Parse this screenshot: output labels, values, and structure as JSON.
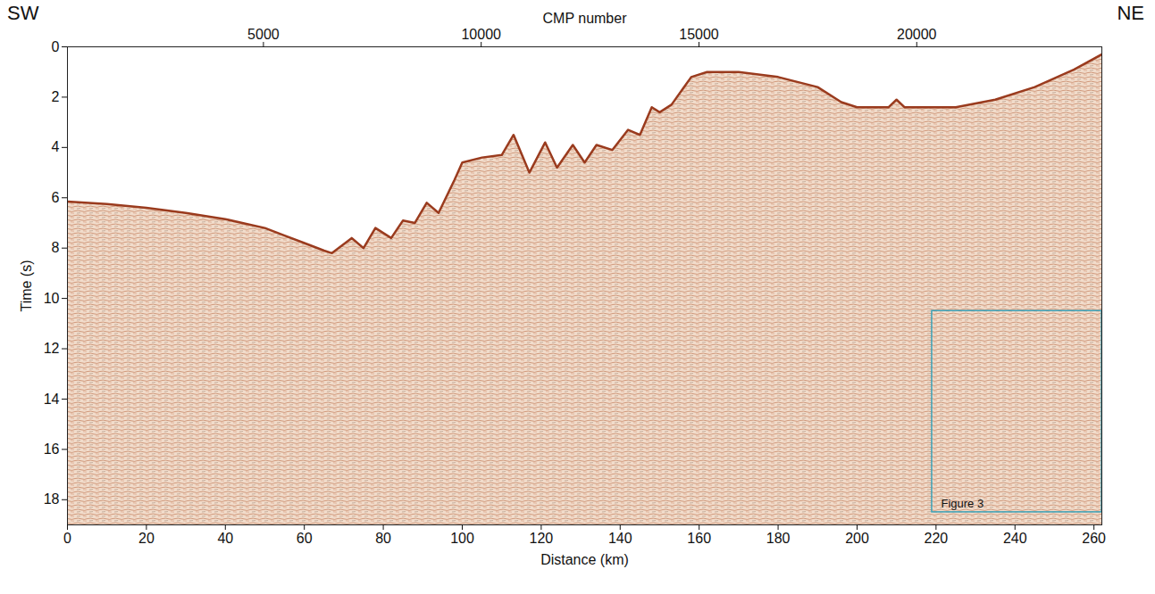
{
  "chart_data": {
    "type": "area",
    "x_label": "Distance (km)",
    "y_label": "Time (s)",
    "x2_label": "CMP number",
    "direction_labels": [
      "SW",
      "NE"
    ],
    "color": "#9a3b1e",
    "x": [
      0,
      10,
      20,
      30,
      40,
      50,
      55,
      60,
      65,
      67,
      72,
      75,
      78,
      82,
      85,
      88,
      91,
      94,
      98,
      100,
      105,
      110,
      113,
      117,
      121,
      124,
      128,
      131,
      134,
      138,
      142,
      145,
      148,
      150,
      153,
      158,
      162,
      170,
      180,
      190,
      196,
      200,
      208,
      210,
      212,
      220,
      225,
      235,
      245,
      255,
      262
    ],
    "values": [
      6.15,
      6.25,
      6.4,
      6.6,
      6.85,
      7.2,
      7.5,
      7.8,
      8.1,
      8.2,
      7.6,
      8.0,
      7.2,
      7.6,
      6.9,
      7.0,
      6.2,
      6.6,
      5.3,
      4.6,
      4.4,
      4.3,
      3.5,
      5.0,
      3.8,
      4.8,
      3.9,
      4.6,
      3.9,
      4.1,
      3.3,
      3.5,
      2.4,
      2.6,
      2.3,
      1.2,
      1.0,
      1.0,
      1.2,
      1.6,
      2.2,
      2.4,
      2.4,
      2.1,
      2.4,
      2.4,
      2.4,
      2.1,
      1.6,
      0.9,
      0.3
    ],
    "xlim": [
      0,
      262
    ],
    "xticks": [
      0,
      20,
      40,
      60,
      80,
      100,
      120,
      140,
      160,
      180,
      200,
      220,
      240,
      260
    ],
    "ylim": [
      0,
      19
    ],
    "yticks": [
      0,
      2,
      4,
      6,
      8,
      10,
      12,
      14,
      16,
      18
    ],
    "x2lim": [
      500,
      24250
    ],
    "x2ticks": [
      5000,
      10000,
      15000,
      20000
    ],
    "box": {
      "text": "Figure 3",
      "x": [
        219,
        262
      ],
      "y": [
        10.5,
        18.5
      ],
      "color": "#3a9fb5"
    }
  }
}
